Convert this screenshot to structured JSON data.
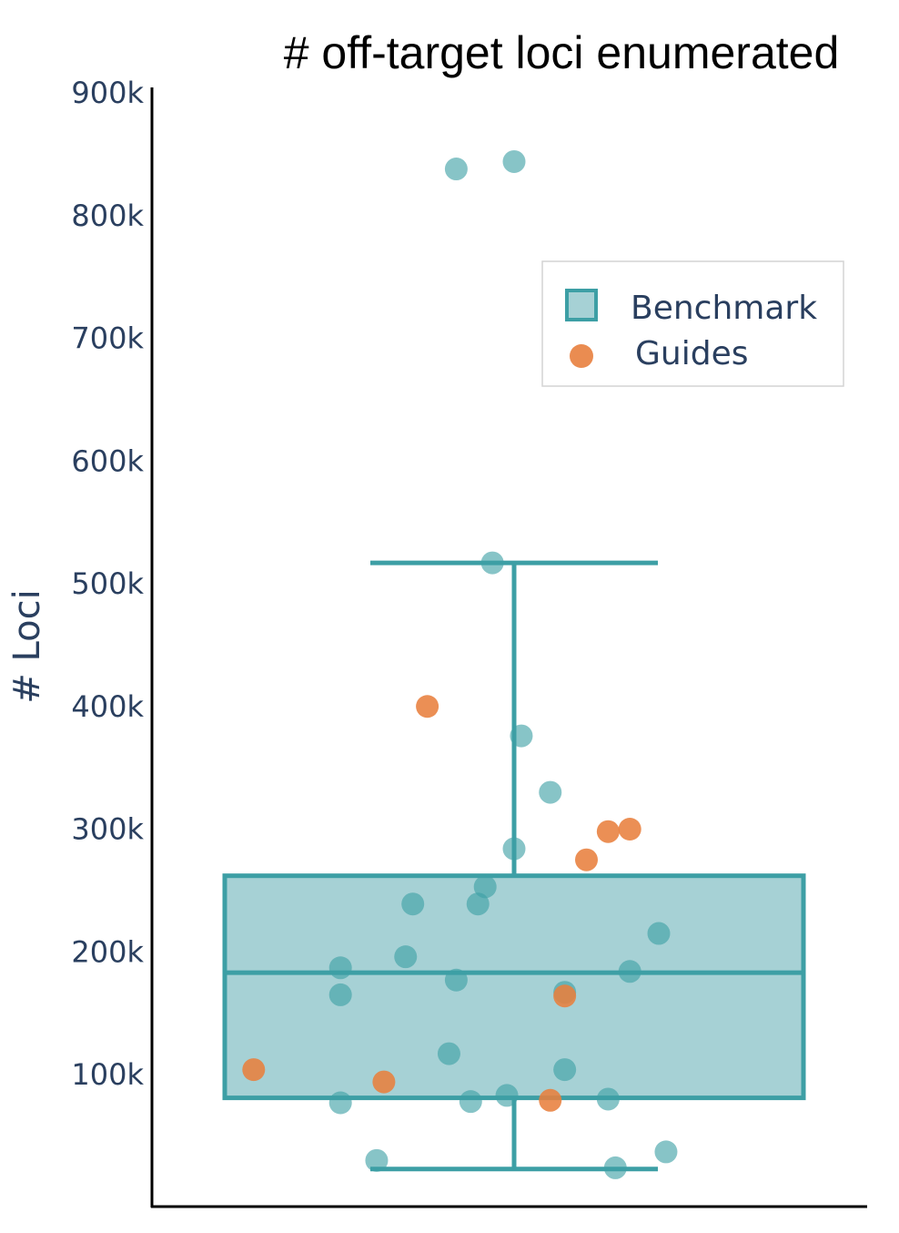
{
  "chart_data": {
    "type": "box",
    "title": "# off-target loci enumerated",
    "ylabel": "# Loci",
    "xlabel": "",
    "ylim": [
      0,
      900000
    ],
    "yticks": [
      100000,
      200000,
      300000,
      400000,
      500000,
      600000,
      700000,
      800000,
      900000
    ],
    "ytick_labels": [
      "100k",
      "200k",
      "300k",
      "400k",
      "500k",
      "600k",
      "700k",
      "800k",
      "900k"
    ],
    "legend": {
      "position": "top-right",
      "entries": [
        "Benchmark",
        "Guides"
      ]
    },
    "colors": {
      "benchmark": "#3d9fa5",
      "benchmark_fill": "#a6d1d5",
      "guides": "#e8803e",
      "axis": "#000000",
      "text": "#2a3f5f"
    },
    "box": {
      "name": "Benchmark",
      "whisker_low": 23000,
      "q1": 81000,
      "median": 183000,
      "q3": 262000,
      "whisker_high": 517000
    },
    "series": [
      {
        "name": "Benchmark",
        "points": [
          {
            "x": -0.08,
            "y": 838000
          },
          {
            "x": 0.0,
            "y": 844000
          },
          {
            "x": -0.03,
            "y": 517000
          },
          {
            "x": 0.01,
            "y": 376000
          },
          {
            "x": 0.05,
            "y": 330000
          },
          {
            "x": 0.0,
            "y": 284000
          },
          {
            "x": -0.04,
            "y": 253000
          },
          {
            "x": -0.14,
            "y": 239000
          },
          {
            "x": -0.05,
            "y": 239000
          },
          {
            "x": 0.2,
            "y": 215000
          },
          {
            "x": -0.15,
            "y": 196000
          },
          {
            "x": -0.24,
            "y": 187000
          },
          {
            "x": 0.16,
            "y": 184000
          },
          {
            "x": -0.08,
            "y": 177000
          },
          {
            "x": 0.07,
            "y": 167000
          },
          {
            "x": -0.24,
            "y": 165000
          },
          {
            "x": -0.09,
            "y": 117000
          },
          {
            "x": 0.07,
            "y": 104000
          },
          {
            "x": -0.01,
            "y": 83000
          },
          {
            "x": -0.06,
            "y": 78000
          },
          {
            "x": 0.13,
            "y": 80000
          },
          {
            "x": -0.24,
            "y": 77000
          },
          {
            "x": 0.21,
            "y": 37000
          },
          {
            "x": -0.19,
            "y": 30000
          },
          {
            "x": 0.14,
            "y": 24000
          }
        ]
      },
      {
        "name": "Guides",
        "points": [
          {
            "x": -0.12,
            "y": 400000
          },
          {
            "x": 0.16,
            "y": 300000
          },
          {
            "x": 0.13,
            "y": 298000
          },
          {
            "x": 0.1,
            "y": 275000
          },
          {
            "x": 0.07,
            "y": 164000
          },
          {
            "x": -0.36,
            "y": 104000
          },
          {
            "x": -0.18,
            "y": 94000
          },
          {
            "x": 0.05,
            "y": 79000
          }
        ]
      }
    ]
  }
}
